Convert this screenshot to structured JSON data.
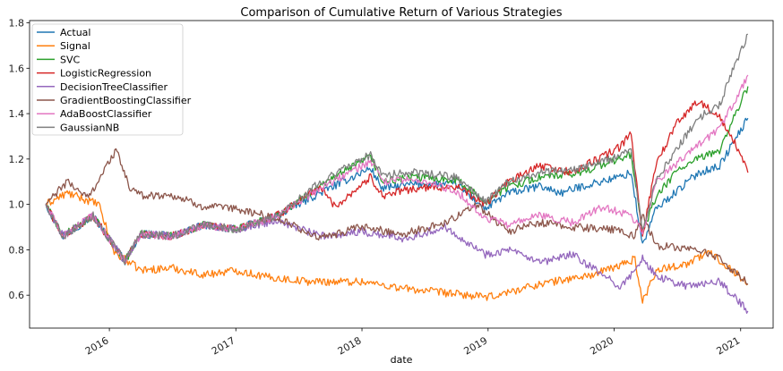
{
  "chart_data": {
    "type": "line",
    "title": "Comparison of Cumulative Return of Various Strategies",
    "xlabel": "date",
    "ylabel": "",
    "xlim": [
      "2015-05-15",
      "2021-04-05"
    ],
    "ylim": [
      0.455,
      1.81
    ],
    "grid": false,
    "legend_position": "top-left",
    "x_ticks": [
      {
        "date": "2016-01-01",
        "label": "2016"
      },
      {
        "date": "2017-01-01",
        "label": "2017"
      },
      {
        "date": "2018-01-01",
        "label": "2018"
      },
      {
        "date": "2019-01-01",
        "label": "2019"
      },
      {
        "date": "2020-01-01",
        "label": "2020"
      },
      {
        "date": "2021-01-01",
        "label": "2021"
      }
    ],
    "y_ticks": [
      0.6,
      0.8,
      1.0,
      1.2,
      1.4,
      1.6,
      1.8
    ],
    "y_tick_labels": [
      "0.6",
      "0.8",
      "1.0",
      "1.2",
      "1.4",
      "1.6",
      "1.8"
    ],
    "series": [
      {
        "name": "Actual",
        "color": "#1f77b4",
        "points": [
          [
            "2015-07-01",
            1.0
          ],
          [
            "2015-08-20",
            0.86
          ],
          [
            "2015-11-15",
            0.95
          ],
          [
            "2016-02-15",
            0.75
          ],
          [
            "2016-04-01",
            0.87
          ],
          [
            "2016-07-01",
            0.86
          ],
          [
            "2016-10-01",
            0.91
          ],
          [
            "2017-01-01",
            0.89
          ],
          [
            "2017-05-01",
            0.95
          ],
          [
            "2017-09-01",
            1.05
          ],
          [
            "2018-01-26",
            1.16
          ],
          [
            "2018-03-01",
            1.07
          ],
          [
            "2018-06-01",
            1.09
          ],
          [
            "2018-10-01",
            1.09
          ],
          [
            "2018-12-24",
            0.98
          ],
          [
            "2019-03-01",
            1.05
          ],
          [
            "2019-06-01",
            1.08
          ],
          [
            "2019-08-01",
            1.05
          ],
          [
            "2019-10-01",
            1.08
          ],
          [
            "2020-01-15",
            1.12
          ],
          [
            "2020-02-19",
            1.14
          ],
          [
            "2020-03-23",
            0.82
          ],
          [
            "2020-05-01",
            0.98
          ],
          [
            "2020-07-01",
            1.06
          ],
          [
            "2020-09-01",
            1.14
          ],
          [
            "2020-11-01",
            1.17
          ],
          [
            "2021-01-22",
            1.38
          ]
        ]
      },
      {
        "name": "Signal",
        "color": "#ff7f0e",
        "points": [
          [
            "2015-07-01",
            1.0
          ],
          [
            "2015-09-01",
            1.05
          ],
          [
            "2015-12-01",
            1.0
          ],
          [
            "2016-01-15",
            0.79
          ],
          [
            "2016-04-01",
            0.71
          ],
          [
            "2016-07-01",
            0.72
          ],
          [
            "2016-10-01",
            0.69
          ],
          [
            "2017-01-01",
            0.71
          ],
          [
            "2017-04-01",
            0.68
          ],
          [
            "2017-08-01",
            0.66
          ],
          [
            "2018-01-01",
            0.66
          ],
          [
            "2018-05-01",
            0.63
          ],
          [
            "2018-09-01",
            0.61
          ],
          [
            "2019-01-01",
            0.59
          ],
          [
            "2019-06-01",
            0.65
          ],
          [
            "2019-11-01",
            0.69
          ],
          [
            "2020-01-15",
            0.73
          ],
          [
            "2020-03-01",
            0.76
          ],
          [
            "2020-03-23",
            0.57
          ],
          [
            "2020-05-01",
            0.71
          ],
          [
            "2020-08-01",
            0.74
          ],
          [
            "2020-10-01",
            0.79
          ],
          [
            "2020-12-01",
            0.72
          ],
          [
            "2021-01-22",
            0.65
          ]
        ]
      },
      {
        "name": "SVC",
        "color": "#2ca02c",
        "points": [
          [
            "2015-07-01",
            1.0
          ],
          [
            "2015-08-20",
            0.86
          ],
          [
            "2015-11-15",
            0.95
          ],
          [
            "2016-02-15",
            0.75
          ],
          [
            "2016-04-01",
            0.87
          ],
          [
            "2016-07-01",
            0.86
          ],
          [
            "2016-10-01",
            0.91
          ],
          [
            "2017-01-01",
            0.89
          ],
          [
            "2017-05-01",
            0.95
          ],
          [
            "2017-09-01",
            1.08
          ],
          [
            "2018-01-26",
            1.21
          ],
          [
            "2018-03-01",
            1.1
          ],
          [
            "2018-06-01",
            1.12
          ],
          [
            "2018-10-01",
            1.11
          ],
          [
            "2018-12-24",
            1.01
          ],
          [
            "2019-03-01",
            1.08
          ],
          [
            "2019-06-01",
            1.12
          ],
          [
            "2019-09-01",
            1.13
          ],
          [
            "2020-01-15",
            1.2
          ],
          [
            "2020-02-19",
            1.22
          ],
          [
            "2020-03-23",
            0.88
          ],
          [
            "2020-05-01",
            1.03
          ],
          [
            "2020-07-01",
            1.15
          ],
          [
            "2020-09-01",
            1.2
          ],
          [
            "2020-11-01",
            1.24
          ],
          [
            "2021-01-22",
            1.52
          ]
        ]
      },
      {
        "name": "LogisticRegression",
        "color": "#d62728",
        "points": [
          [
            "2015-07-01",
            1.0
          ],
          [
            "2015-08-20",
            0.86
          ],
          [
            "2015-11-15",
            0.95
          ],
          [
            "2016-02-15",
            0.75
          ],
          [
            "2016-04-01",
            0.87
          ],
          [
            "2016-07-01",
            0.86
          ],
          [
            "2016-10-01",
            0.91
          ],
          [
            "2017-01-01",
            0.89
          ],
          [
            "2017-05-01",
            0.95
          ],
          [
            "2017-09-01",
            1.08
          ],
          [
            "2017-10-15",
            0.99
          ],
          [
            "2018-01-26",
            1.12
          ],
          [
            "2018-03-01",
            1.04
          ],
          [
            "2018-06-01",
            1.07
          ],
          [
            "2018-10-01",
            1.08
          ],
          [
            "2018-12-24",
            1.0
          ],
          [
            "2019-03-01",
            1.1
          ],
          [
            "2019-06-01",
            1.17
          ],
          [
            "2019-09-01",
            1.14
          ],
          [
            "2020-01-15",
            1.25
          ],
          [
            "2020-02-19",
            1.31
          ],
          [
            "2020-03-23",
            0.86
          ],
          [
            "2020-05-01",
            1.18
          ],
          [
            "2020-07-01",
            1.36
          ],
          [
            "2020-09-01",
            1.46
          ],
          [
            "2020-11-01",
            1.38
          ],
          [
            "2020-12-15",
            1.27
          ],
          [
            "2021-01-22",
            1.14
          ]
        ]
      },
      {
        "name": "DecisionTreeClassifier",
        "color": "#9467bd",
        "points": [
          [
            "2015-07-01",
            1.0
          ],
          [
            "2015-08-20",
            0.86
          ],
          [
            "2015-11-15",
            0.95
          ],
          [
            "2016-02-15",
            0.75
          ],
          [
            "2016-04-01",
            0.87
          ],
          [
            "2016-07-01",
            0.86
          ],
          [
            "2016-10-01",
            0.91
          ],
          [
            "2017-01-01",
            0.89
          ],
          [
            "2017-05-01",
            0.93
          ],
          [
            "2017-09-01",
            0.86
          ],
          [
            "2018-01-01",
            0.88
          ],
          [
            "2018-05-01",
            0.85
          ],
          [
            "2018-09-01",
            0.9
          ],
          [
            "2018-12-24",
            0.78
          ],
          [
            "2019-03-01",
            0.8
          ],
          [
            "2019-06-01",
            0.74
          ],
          [
            "2019-09-01",
            0.78
          ],
          [
            "2020-01-15",
            0.64
          ],
          [
            "2020-03-01",
            0.7
          ],
          [
            "2020-03-23",
            0.77
          ],
          [
            "2020-05-01",
            0.68
          ],
          [
            "2020-08-01",
            0.64
          ],
          [
            "2020-11-01",
            0.66
          ],
          [
            "2021-01-22",
            0.53
          ]
        ]
      },
      {
        "name": "GradientBoostingClassifier",
        "color": "#8c564b",
        "points": [
          [
            "2015-07-01",
            1.0
          ],
          [
            "2015-09-01",
            1.1
          ],
          [
            "2015-11-01",
            1.03
          ],
          [
            "2016-01-20",
            1.24
          ],
          [
            "2016-03-01",
            1.07
          ],
          [
            "2016-04-01",
            1.04
          ],
          [
            "2016-07-01",
            1.04
          ],
          [
            "2016-10-01",
            0.99
          ],
          [
            "2017-01-01",
            0.98
          ],
          [
            "2017-05-01",
            0.94
          ],
          [
            "2017-09-01",
            0.85
          ],
          [
            "2018-01-01",
            0.9
          ],
          [
            "2018-05-01",
            0.87
          ],
          [
            "2018-09-01",
            0.92
          ],
          [
            "2018-12-01",
            1.0
          ],
          [
            "2019-03-01",
            0.88
          ],
          [
            "2019-06-01",
            0.92
          ],
          [
            "2019-09-01",
            0.9
          ],
          [
            "2020-01-01",
            0.89
          ],
          [
            "2020-03-01",
            0.86
          ],
          [
            "2020-03-23",
            0.95
          ],
          [
            "2020-05-01",
            0.82
          ],
          [
            "2020-09-01",
            0.8
          ],
          [
            "2020-11-01",
            0.76
          ],
          [
            "2021-01-22",
            0.65
          ]
        ]
      },
      {
        "name": "AdaBoostClassifier",
        "color": "#e377c2",
        "points": [
          [
            "2015-07-01",
            1.0
          ],
          [
            "2015-08-20",
            0.86
          ],
          [
            "2015-11-15",
            0.95
          ],
          [
            "2016-02-15",
            0.75
          ],
          [
            "2016-04-01",
            0.87
          ],
          [
            "2016-07-01",
            0.86
          ],
          [
            "2016-10-01",
            0.91
          ],
          [
            "2017-01-01",
            0.89
          ],
          [
            "2017-05-01",
            0.95
          ],
          [
            "2017-09-01",
            1.07
          ],
          [
            "2018-01-26",
            1.19
          ],
          [
            "2018-03-01",
            1.1
          ],
          [
            "2018-06-01",
            1.11
          ],
          [
            "2018-10-01",
            1.06
          ],
          [
            "2018-12-24",
            0.94
          ],
          [
            "2019-03-01",
            0.91
          ],
          [
            "2019-06-01",
            0.95
          ],
          [
            "2019-09-01",
            0.92
          ],
          [
            "2019-12-01",
            0.99
          ],
          [
            "2020-02-19",
            0.95
          ],
          [
            "2020-03-23",
            0.88
          ],
          [
            "2020-05-01",
            1.1
          ],
          [
            "2020-07-01",
            1.18
          ],
          [
            "2020-09-01",
            1.26
          ],
          [
            "2020-11-01",
            1.33
          ],
          [
            "2021-01-22",
            1.57
          ]
        ]
      },
      {
        "name": "GaussianNB",
        "color": "#7f7f7f",
        "points": [
          [
            "2015-07-01",
            1.0
          ],
          [
            "2015-08-20",
            0.86
          ],
          [
            "2015-11-15",
            0.95
          ],
          [
            "2016-02-15",
            0.75
          ],
          [
            "2016-04-01",
            0.87
          ],
          [
            "2016-07-01",
            0.86
          ],
          [
            "2016-10-01",
            0.91
          ],
          [
            "2017-01-01",
            0.89
          ],
          [
            "2017-05-01",
            0.95
          ],
          [
            "2017-09-01",
            1.1
          ],
          [
            "2018-01-26",
            1.22
          ],
          [
            "2018-03-01",
            1.13
          ],
          [
            "2018-06-01",
            1.14
          ],
          [
            "2018-10-01",
            1.12
          ],
          [
            "2018-12-24",
            1.01
          ],
          [
            "2019-03-01",
            1.1
          ],
          [
            "2019-06-01",
            1.14
          ],
          [
            "2019-09-01",
            1.15
          ],
          [
            "2020-01-15",
            1.21
          ],
          [
            "2020-02-19",
            1.25
          ],
          [
            "2020-03-23",
            0.88
          ],
          [
            "2020-05-01",
            1.1
          ],
          [
            "2020-07-01",
            1.25
          ],
          [
            "2020-09-01",
            1.38
          ],
          [
            "2020-11-01",
            1.44
          ],
          [
            "2020-12-01",
            1.56
          ],
          [
            "2021-01-22",
            1.75
          ]
        ]
      }
    ]
  }
}
